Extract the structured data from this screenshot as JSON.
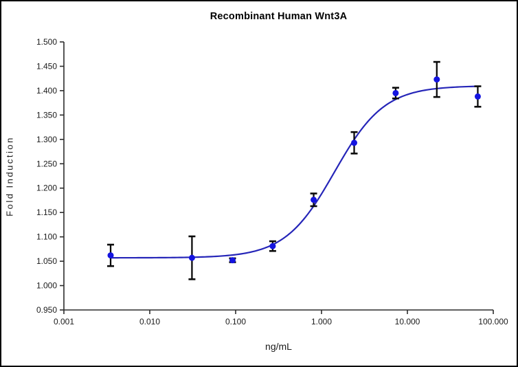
{
  "chart_data": {
    "type": "scatter",
    "title": "Recombinant Human Wnt3A",
    "xlabel": "ng/mL",
    "ylabel": "Fold Induction",
    "x_scale": "log10",
    "xlim": [
      0.001,
      100
    ],
    "ylim": [
      0.95,
      1.5
    ],
    "x_tick_values": [
      0.001,
      0.01,
      0.1,
      1,
      10,
      100
    ],
    "x_tick_labels": [
      "0.001",
      "0.010",
      "0.100",
      "1.000",
      "10.000",
      "100.000"
    ],
    "y_tick_values": [
      0.95,
      1.0,
      1.05,
      1.1,
      1.15,
      1.2,
      1.25,
      1.3,
      1.35,
      1.4,
      1.45,
      1.5
    ],
    "y_tick_labels": [
      "0.950",
      "1.000",
      "1.050",
      "1.100",
      "1.150",
      "1.200",
      "1.250",
      "1.300",
      "1.350",
      "1.400",
      "1.450",
      "1.500"
    ],
    "grid": false,
    "legend": false,
    "points": [
      {
        "x": 0.0035,
        "y": 1.062,
        "err": 0.022
      },
      {
        "x": 0.031,
        "y": 1.057,
        "err": 0.044
      },
      {
        "x": 0.092,
        "y": 1.052,
        "err": 0.004
      },
      {
        "x": 0.27,
        "y": 1.081,
        "err": 0.01
      },
      {
        "x": 0.81,
        "y": 1.176,
        "err": 0.013
      },
      {
        "x": 2.4,
        "y": 1.293,
        "err": 0.022
      },
      {
        "x": 7.3,
        "y": 1.395,
        "err": 0.011
      },
      {
        "x": 22,
        "y": 1.423,
        "err": 0.036
      },
      {
        "x": 66,
        "y": 1.388,
        "err": 0.021
      }
    ],
    "fit_curve": {
      "model": "4PL",
      "bottom": 1.057,
      "top": 1.41,
      "ec50": 1.42,
      "hill": 1.5,
      "x_start": 0.0035,
      "x_end": 66
    },
    "colors": {
      "point": "#1414e0",
      "curve": "#2525b8",
      "error_bar": "#0a0a0a",
      "axis": "#2b2b2b",
      "text": "#1a1a1a"
    }
  }
}
